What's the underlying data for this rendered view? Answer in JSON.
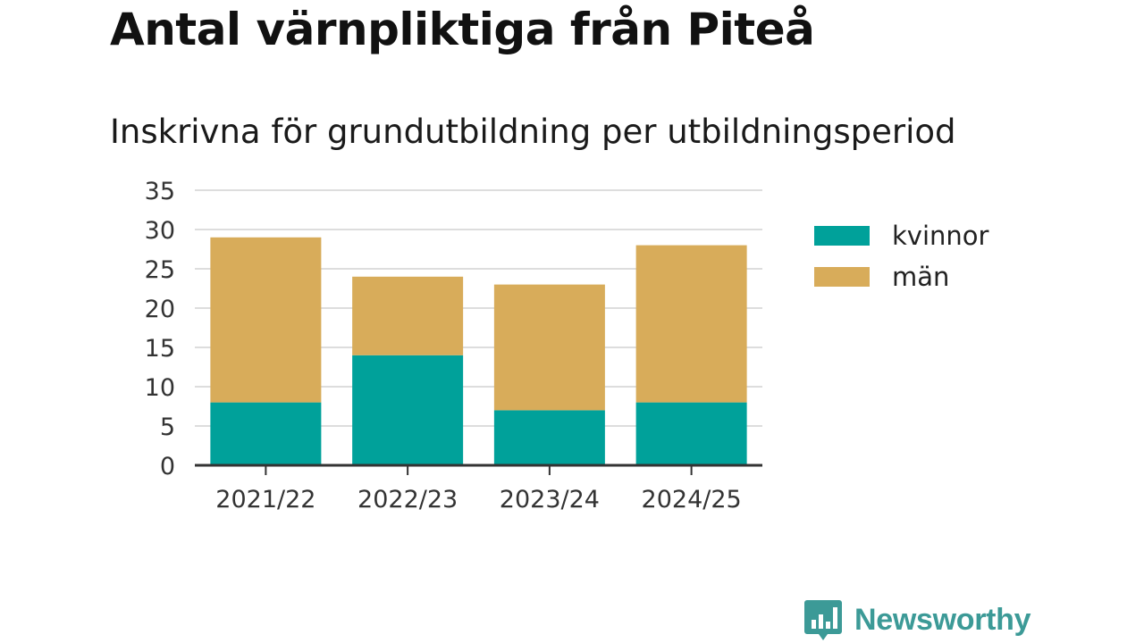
{
  "title": "Antal värnpliktiga från Piteå",
  "subtitle": "Inskrivna för grundutbildning per utbildningsperiod",
  "brand": {
    "name": "Newsworthy",
    "logo_icon": "newsworthy-bar-chart-icon",
    "color": "#3c9a97"
  },
  "chart_data": {
    "type": "bar",
    "stacked": true,
    "categories": [
      "2021/22",
      "2022/23",
      "2023/24",
      "2024/25"
    ],
    "series": [
      {
        "name": "kvinnor",
        "values": [
          8,
          14,
          7,
          8
        ],
        "color": "#00a19a"
      },
      {
        "name": "män",
        "values": [
          21,
          10,
          16,
          20
        ],
        "color": "#d8ac5a"
      }
    ],
    "ylim": [
      0,
      35
    ],
    "yticks": [
      "0",
      "5",
      "10",
      "15",
      "20",
      "25",
      "30",
      "35"
    ],
    "grid": true,
    "legend_position": "right"
  }
}
